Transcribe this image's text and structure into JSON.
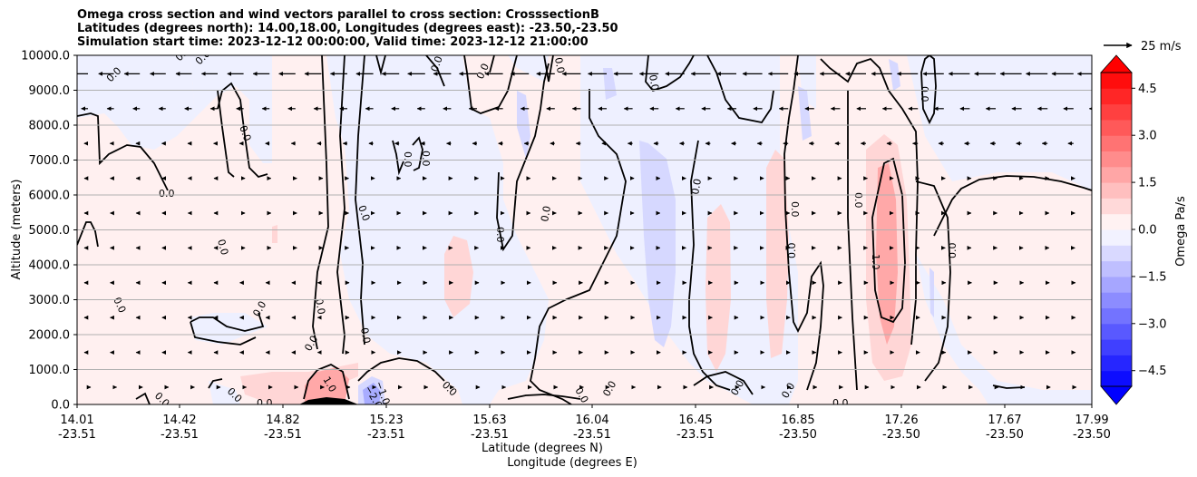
{
  "title_lines": [
    "Omega cross section and wind vectors parallel to cross section: CrosssectionB",
    "Latitudes (degrees north): 14.00,18.00, Longitudes (degrees east): -23.50,-23.50",
    "Simulation start time: 2023-12-12 00:00:00, Valid time: 2023-12-12 21:00:00"
  ],
  "quiver_key": "25 m/s",
  "colorbar_label": "Omega Pa/s",
  "colors": {
    "positive": "#ff0000",
    "negative": "#0000ff",
    "contour": "#000000",
    "grid": "#b0b0b0"
  },
  "chart_data": {
    "type": "contourf",
    "xlabel_lines": [
      "Latitude (degrees N)",
      "Longitude (degrees E)"
    ],
    "ylabel": "Altitude (meters)",
    "ylim": [
      0,
      10000
    ],
    "y_ticks": [
      "0.0",
      "1000.0",
      "2000.0",
      "3000.0",
      "4000.0",
      "5000.0",
      "6000.0",
      "7000.0",
      "8000.0",
      "9000.0",
      "10000.0"
    ],
    "x_ticks": [
      {
        "lat": "14.01",
        "lon": "-23.51"
      },
      {
        "lat": "14.42",
        "lon": "-23.51"
      },
      {
        "lat": "14.82",
        "lon": "-23.51"
      },
      {
        "lat": "15.23",
        "lon": "-23.51"
      },
      {
        "lat": "15.63",
        "lon": "-23.51"
      },
      {
        "lat": "16.04",
        "lon": "-23.51"
      },
      {
        "lat": "16.45",
        "lon": "-23.51"
      },
      {
        "lat": "16.85",
        "lon": "-23.50"
      },
      {
        "lat": "17.26",
        "lon": "-23.50"
      },
      {
        "lat": "17.67",
        "lon": "-23.50"
      },
      {
        "lat": "17.99",
        "lon": "-23.50"
      }
    ],
    "colorbar_ticks": [
      "4.5",
      "3.0",
      "1.5",
      "0.0",
      "−1.5",
      "−3.0",
      "−4.5"
    ],
    "colorbar_range": [
      -5,
      5
    ],
    "grid": "horizontal",
    "contour_labels": [
      "0.0",
      "0.0",
      "0.0",
      "0.0",
      "0.0",
      "0.0",
      "0.0",
      "0.0",
      "0.0",
      "0.0",
      "0.0",
      "0.0",
      "0.0",
      "0.0",
      "0.0",
      "0.0",
      "0.0",
      "0.0",
      "0.0",
      "0.0",
      "0.0",
      "0.0",
      "0.0",
      "0.0",
      "0.0",
      "0.0",
      "0.0",
      "0.0",
      "0.0",
      "0.0",
      "0.0",
      "0.0",
      "1.0",
      "1.0",
      "−1.0",
      "−2.0",
      "0.0",
      "0.0",
      "0.0"
    ]
  }
}
